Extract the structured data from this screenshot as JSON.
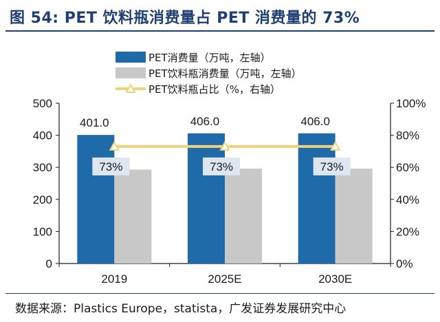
{
  "header": {
    "title": "图 54: PET 饮料瓶消费量占 PET 消费量的 73%"
  },
  "footer": {
    "source": "数据来源：Plastics Europe，statista，广发证券发展研究中心"
  },
  "colors": {
    "title": "#1f3f73",
    "pet_bar": "#1f6aa8",
    "bottle_bar": "#c8c8c8",
    "ratio_line": "#f0d27a",
    "label_box": "#dde6f1"
  },
  "chart_data": {
    "type": "bar",
    "categories": [
      "2019",
      "2025E",
      "2030E"
    ],
    "series": [
      {
        "name": "PET消费量（万吨，左轴）",
        "kind": "bar",
        "axis": "left",
        "color": "#1f6aa8",
        "values": [
          401.0,
          406.0,
          406.0
        ],
        "labels": [
          "401.0",
          "406.0",
          "406.0"
        ]
      },
      {
        "name": "PET饮料瓶消费量（万吨，左轴）",
        "kind": "bar",
        "axis": "left",
        "color": "#c8c8c8",
        "values": [
          293,
          296,
          296
        ]
      },
      {
        "name": "PET饮料瓶占比（%，右轴）",
        "kind": "line",
        "axis": "right",
        "color": "#f0d27a",
        "values": [
          73,
          73,
          73
        ],
        "labels": [
          "73%",
          "73%",
          "73%"
        ]
      }
    ],
    "y_left": {
      "min": 0,
      "max": 500,
      "ticks": [
        "0",
        "100",
        "200",
        "300",
        "400",
        "500"
      ]
    },
    "y_right": {
      "min": 0,
      "max": 100,
      "ticks": [
        "0%",
        "20%",
        "40%",
        "60%",
        "80%",
        "100%"
      ]
    },
    "legend": "top-center",
    "grid": false
  }
}
